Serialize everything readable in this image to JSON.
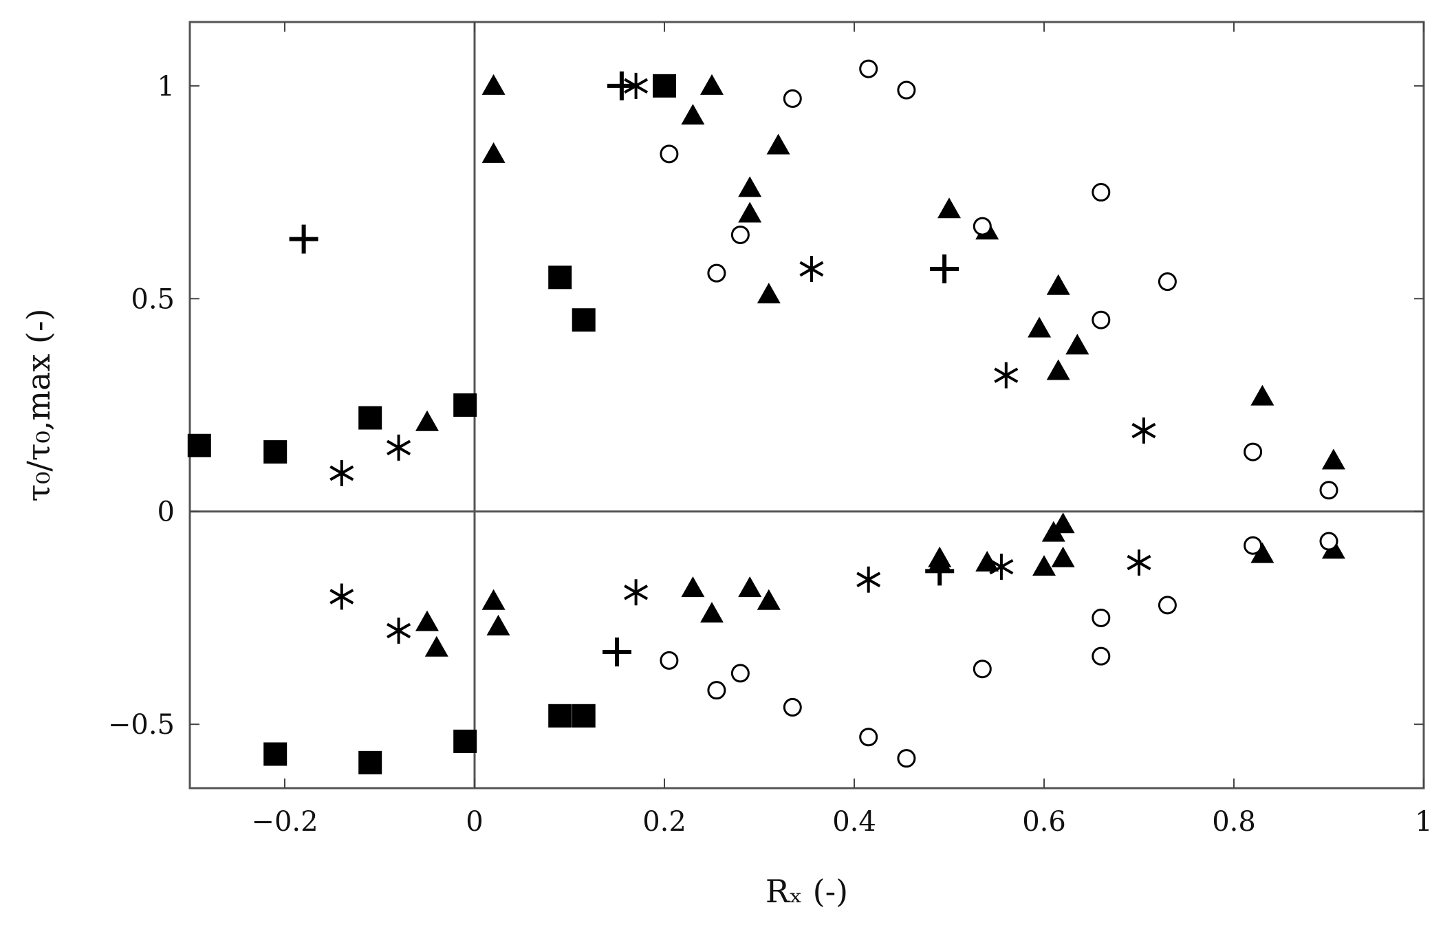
{
  "chart_data": {
    "type": "scatter",
    "title": "",
    "xlabel": "Rₓ (-)",
    "ylabel": "τ₀/τ₀,max (-)",
    "xlim": [
      -0.3,
      1.0
    ],
    "ylim": [
      -0.65,
      1.15
    ],
    "xticks": [
      -0.2,
      0,
      0.2,
      0.4,
      0.6,
      0.8,
      1
    ],
    "xtick_labels": [
      "−0.2",
      "0",
      "0.2",
      "0.4",
      "0.6",
      "0.8",
      "1"
    ],
    "yticks": [
      -0.5,
      0,
      0.5,
      1
    ],
    "ytick_labels": [
      "−0.5",
      "0",
      "0.5",
      "1"
    ],
    "zero_lines": true,
    "grid": false,
    "legend": "none",
    "series": [
      {
        "marker": "filled-square",
        "color": "#000000",
        "x": [
          -0.29,
          -0.21,
          -0.11,
          -0.01,
          0.09,
          0.115,
          0.2,
          -0.21,
          -0.11,
          -0.01,
          0.09,
          0.115
        ],
        "y": [
          0.155,
          0.14,
          0.22,
          0.25,
          0.55,
          0.45,
          1.0,
          -0.57,
          -0.59,
          -0.54,
          -0.48,
          -0.48
        ]
      },
      {
        "marker": "filled-triangle",
        "color": "#000000",
        "x": [
          -0.05,
          0.02,
          0.02,
          0.23,
          0.25,
          0.29,
          0.29,
          0.31,
          0.32,
          0.5,
          0.54,
          0.595,
          0.615,
          0.615,
          0.635,
          0.83,
          0.905,
          -0.05,
          -0.04,
          0.02,
          0.025,
          0.23,
          0.25,
          0.29,
          0.31,
          0.49,
          0.49,
          0.54,
          0.6,
          0.61,
          0.62,
          0.62,
          0.83,
          0.905
        ],
        "y": [
          0.21,
          1.0,
          0.84,
          0.93,
          1.0,
          0.76,
          0.7,
          0.51,
          0.86,
          0.71,
          0.66,
          0.43,
          0.53,
          0.33,
          0.39,
          0.27,
          0.12,
          -0.26,
          -0.32,
          -0.21,
          -0.27,
          -0.18,
          -0.24,
          -0.18,
          -0.21,
          -0.11,
          -0.12,
          -0.12,
          -0.13,
          -0.05,
          -0.03,
          -0.11,
          -0.1,
          -0.09
        ]
      },
      {
        "marker": "open-circle",
        "color": "#000000",
        "x": [
          0.205,
          0.255,
          0.28,
          0.335,
          0.415,
          0.455,
          0.535,
          0.66,
          0.66,
          0.73,
          0.82,
          0.9,
          0.205,
          0.255,
          0.28,
          0.335,
          0.415,
          0.455,
          0.535,
          0.66,
          0.66,
          0.73,
          0.82,
          0.9
        ],
        "y": [
          0.84,
          0.56,
          0.65,
          0.97,
          1.04,
          0.99,
          0.67,
          0.75,
          0.45,
          0.54,
          0.14,
          0.05,
          -0.35,
          -0.42,
          -0.38,
          -0.46,
          -0.53,
          -0.58,
          -0.37,
          -0.25,
          -0.34,
          -0.22,
          -0.08,
          -0.07
        ]
      },
      {
        "marker": "asterisk",
        "color": "#000000",
        "x": [
          -0.14,
          -0.08,
          0.17,
          0.355,
          0.56,
          0.705,
          -0.14,
          -0.08,
          0.17,
          0.415,
          0.555,
          0.7
        ],
        "y": [
          0.09,
          0.15,
          1.0,
          0.57,
          0.32,
          0.19,
          -0.2,
          -0.28,
          -0.19,
          -0.16,
          -0.13,
          -0.12
        ]
      },
      {
        "marker": "plus",
        "color": "#000000",
        "x": [
          -0.18,
          0.155,
          0.495,
          0.15,
          0.49
        ],
        "y": [
          0.64,
          1.0,
          0.57,
          -0.33,
          -0.14
        ]
      }
    ]
  }
}
